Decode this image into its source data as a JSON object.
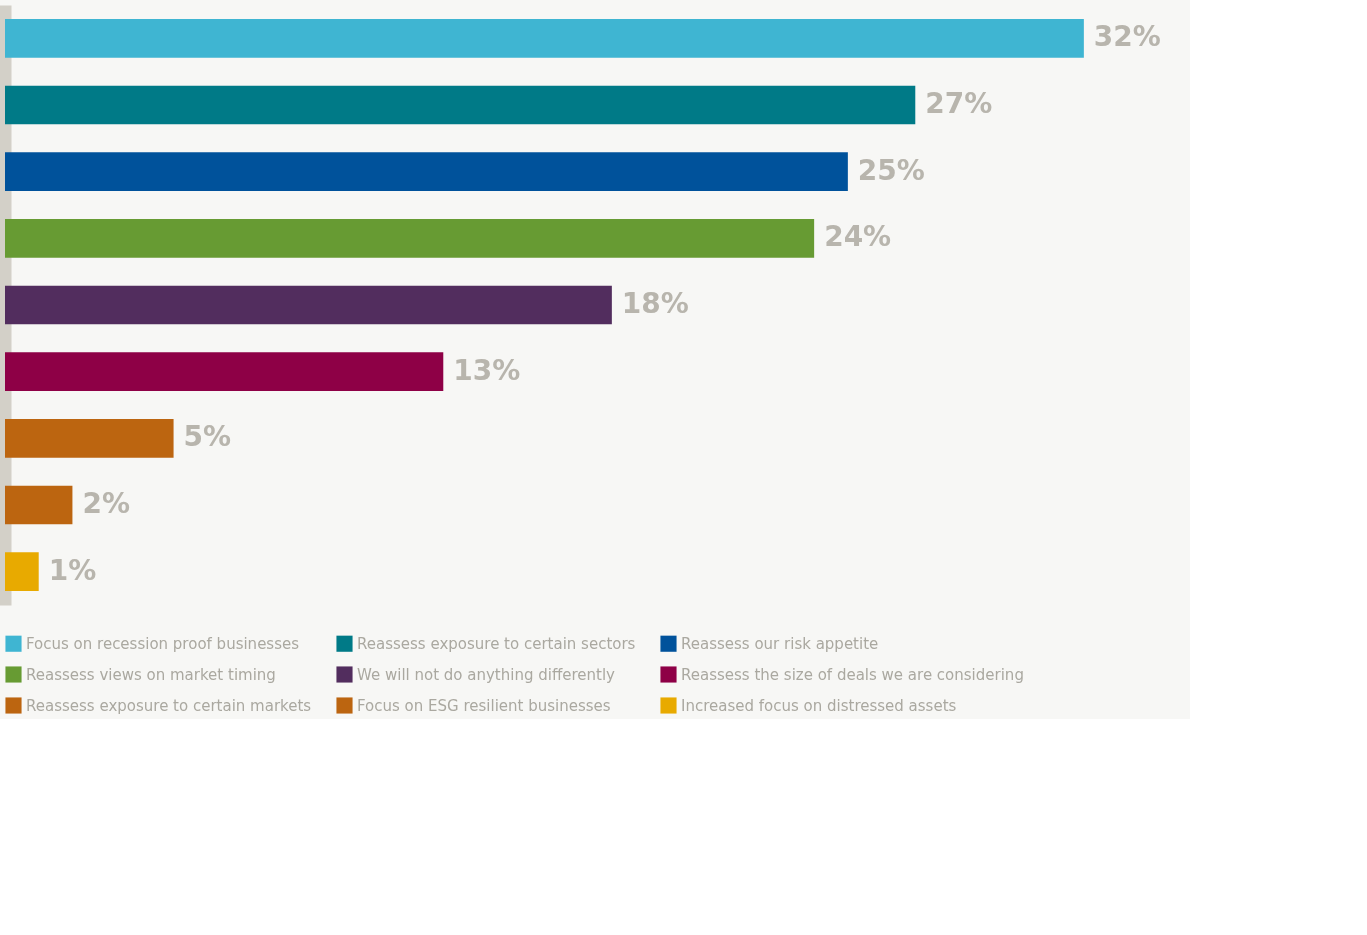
{
  "chart_data": {
    "type": "bar",
    "orientation": "horizontal",
    "stacked": true,
    "categories": [
      null,
      null,
      null,
      null,
      null,
      null,
      null,
      null,
      null
    ],
    "series": [
      {
        "name": "Focus on recession proof businesses",
        "color": "#3fb5d2",
        "values": [
          32,
          null,
          null,
          null,
          null,
          null,
          null,
          null,
          null
        ],
        "value_labels": [
          "32%",
          null,
          null,
          null,
          null,
          null,
          null,
          null,
          null
        ]
      },
      {
        "name": "Reassess exposure to certain sectors",
        "color": "#007a87",
        "values": [
          null,
          27,
          null,
          null,
          null,
          null,
          null,
          null,
          null
        ],
        "value_labels": [
          null,
          "27%",
          null,
          null,
          null,
          null,
          null,
          null,
          null
        ]
      },
      {
        "name": "Reassess our risk appetite",
        "color": "#00529b",
        "values": [
          null,
          null,
          25,
          null,
          null,
          null,
          null,
          null,
          null
        ],
        "value_labels": [
          null,
          null,
          "25%",
          null,
          null,
          null,
          null,
          null,
          null
        ]
      },
      {
        "name": "Reassess views on market timing",
        "color": "#679b33",
        "values": [
          null,
          null,
          null,
          24,
          null,
          null,
          null,
          null,
          null
        ],
        "value_labels": [
          null,
          null,
          null,
          "24%",
          null,
          null,
          null,
          null,
          null
        ]
      },
      {
        "name": "We will not do anything differently",
        "color": "#522d5e",
        "values": [
          null,
          null,
          null,
          null,
          18,
          null,
          null,
          null,
          null
        ],
        "value_labels": [
          null,
          null,
          null,
          null,
          "18%",
          null,
          null,
          null,
          null
        ]
      },
      {
        "name": "Reassess the size of deals we are considering",
        "color": "#8e0046",
        "values": [
          null,
          null,
          null,
          null,
          null,
          13,
          null,
          null,
          null
        ],
        "value_labels": [
          null,
          null,
          null,
          null,
          null,
          "13%",
          null,
          null,
          null
        ]
      },
      {
        "name": "Reassess exposure to certain markets",
        "color": "#bc6510",
        "values": [
          null,
          null,
          null,
          null,
          null,
          null,
          5,
          null,
          null
        ],
        "value_labels": [
          null,
          null,
          null,
          null,
          null,
          null,
          "5%",
          null,
          null
        ]
      },
      {
        "name": "Focus on ESG resilient businesses",
        "color": "#bc6510",
        "values": [
          null,
          null,
          null,
          null,
          null,
          null,
          null,
          2,
          null
        ],
        "value_labels": [
          null,
          null,
          null,
          null,
          null,
          null,
          null,
          "2%",
          null
        ]
      },
      {
        "name": "Increased focus on distressed assets",
        "color": "#e8aa00",
        "values": [
          null,
          null,
          null,
          null,
          null,
          null,
          null,
          null,
          1
        ],
        "value_labels": [
          null,
          null,
          null,
          null,
          null,
          null,
          null,
          null,
          "1%"
        ]
      }
    ],
    "legend": "bottom"
  }
}
